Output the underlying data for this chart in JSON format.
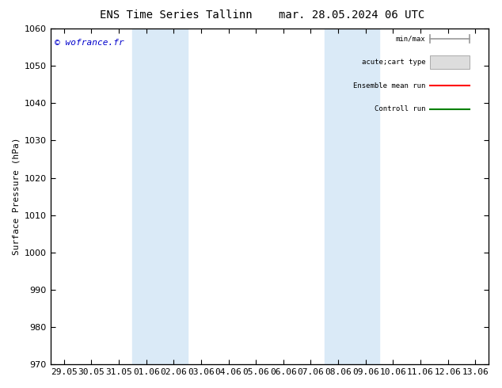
{
  "title_left": "ENS Time Series Tallinn",
  "title_right": "mar. 28.05.2024 06 UTC",
  "ylabel": "Surface Pressure (hPa)",
  "ylim": [
    970,
    1060
  ],
  "yticks": [
    970,
    980,
    990,
    1000,
    1010,
    1020,
    1030,
    1040,
    1050,
    1060
  ],
  "xtick_labels": [
    "29.05",
    "30.05",
    "31.05",
    "01.06",
    "02.06",
    "03.06",
    "04.06",
    "05.06",
    "06.06",
    "07.06",
    "08.06",
    "09.06",
    "10.06",
    "11.06",
    "12.06",
    "13.06"
  ],
  "shade_bands": [
    {
      "xmin": 3,
      "xmax": 5,
      "color": "#daeaf7"
    },
    {
      "xmin": 10,
      "xmax": 12,
      "color": "#daeaf7"
    }
  ],
  "watermark": "© wofrance.fr",
  "watermark_color": "#0000cc",
  "legend_items": [
    {
      "label": "min/max",
      "type": "errorbar",
      "color": "#999999"
    },
    {
      "label": "acute;cart type",
      "type": "box",
      "color": "#dddddd"
    },
    {
      "label": "Ensemble mean run",
      "type": "line",
      "color": "#ff0000"
    },
    {
      "label": "Controll run",
      "type": "line",
      "color": "#008000"
    }
  ],
  "background_color": "#ffffff",
  "plot_bg_color": "#ffffff",
  "spine_color": "#000000",
  "font_size": 8,
  "title_font_size": 10
}
